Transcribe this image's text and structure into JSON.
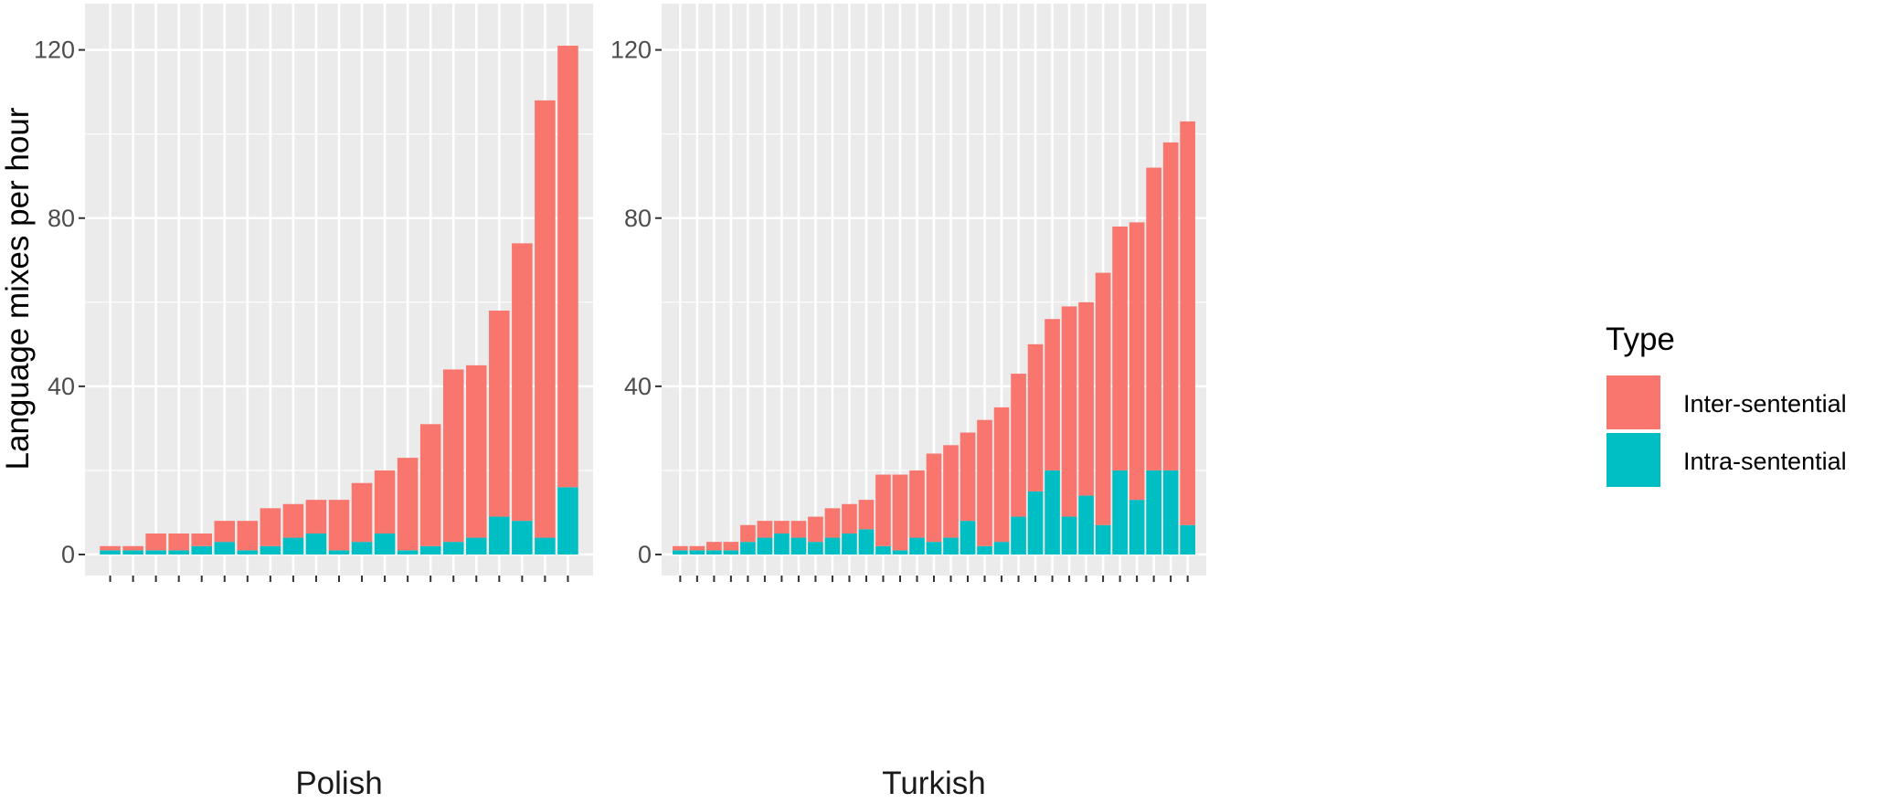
{
  "chart_data": {
    "type": "bar",
    "stacked": true,
    "ylabel": "Language mixes per hour",
    "ylim": [
      -5,
      131
    ],
    "yticks": [
      0,
      40,
      80,
      120
    ],
    "grid": true,
    "legend": {
      "title": "Type",
      "position": "right",
      "entries": [
        {
          "name": "Inter-sentential",
          "color": "#F8766D"
        },
        {
          "name": "Intra-sentential",
          "color": "#00BFC4"
        }
      ]
    },
    "panels": [
      {
        "name": "Polish",
        "series": [
          {
            "name": "Intra-sentential",
            "color": "#00BFC4",
            "values": [
              1,
              1,
              1,
              1,
              2,
              3,
              1,
              2,
              4,
              5,
              1,
              3,
              5,
              1,
              2,
              3,
              4,
              9,
              8,
              4,
              16
            ]
          },
          {
            "name": "Inter-sentential",
            "color": "#F8766D",
            "values": [
              1,
              1,
              4,
              4,
              3,
              5,
              7,
              9,
              8,
              8,
              12,
              14,
              15,
              22,
              29,
              41,
              41,
              49,
              66,
              104,
              105
            ]
          }
        ]
      },
      {
        "name": "Turkish",
        "series": [
          {
            "name": "Intra-sentential",
            "color": "#00BFC4",
            "values": [
              1,
              1,
              1,
              1,
              3,
              4,
              5,
              4,
              3,
              4,
              5,
              6,
              2,
              1,
              4,
              3,
              4,
              8,
              2,
              3,
              9,
              15,
              20,
              9,
              14,
              7,
              20,
              13,
              20,
              20,
              7
            ]
          },
          {
            "name": "Inter-sentential",
            "color": "#F8766D",
            "values": [
              1,
              1,
              2,
              2,
              4,
              4,
              3,
              4,
              6,
              7,
              7,
              7,
              17,
              18,
              16,
              21,
              22,
              21,
              30,
              32,
              34,
              35,
              36,
              50,
              46,
              60,
              58,
              66,
              72,
              78,
              96
            ]
          }
        ]
      }
    ]
  }
}
